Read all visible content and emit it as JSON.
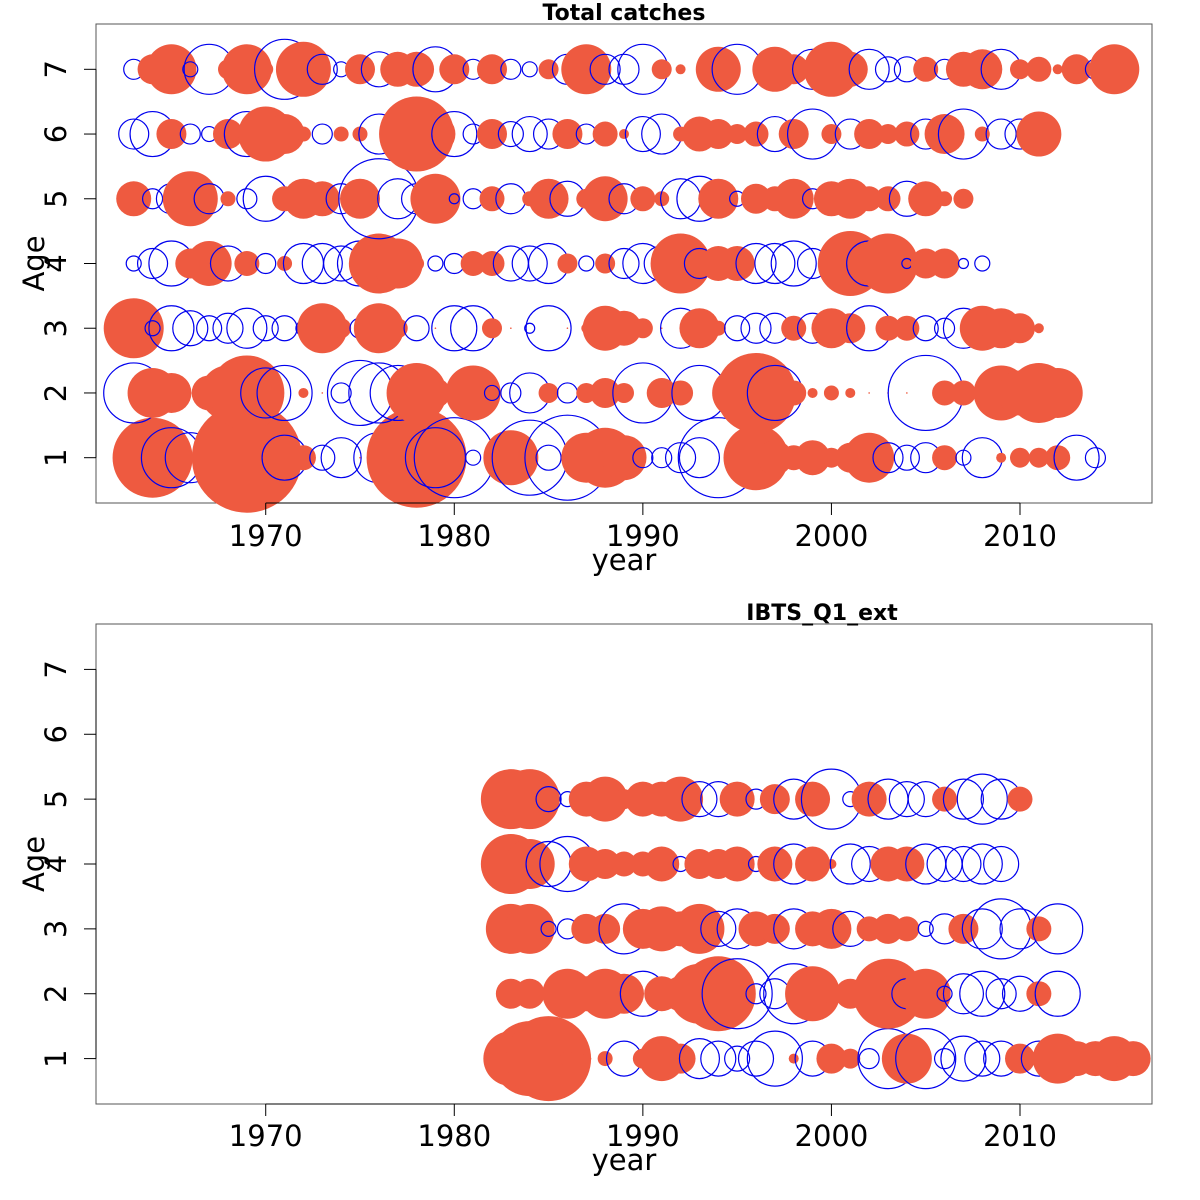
{
  "chart_data": [
    {
      "type": "scatter",
      "title": "Total catches",
      "xlabel": "year",
      "ylabel": "Age",
      "xlim": [
        1961,
        2017
      ],
      "ylim": [
        0.3,
        7.7
      ],
      "xticks": [
        "1970",
        "1980",
        "1990",
        "2000",
        "2010"
      ],
      "yticks": [
        "1",
        "2",
        "3",
        "4",
        "5",
        "6",
        "7"
      ],
      "grid": false,
      "legend": "none",
      "encoding": "bubble area ~ |residual|; filled = positive, open = negative",
      "colors": {
        "positive": "#ee5a40",
        "negative": "#0000ee"
      },
      "year_start": 1963,
      "series": [
        {
          "age": 1,
          "residuals": [
            0.3,
            1.6,
            -1.2,
            -1.0,
            0.4,
            0,
            2.2,
            0,
            -0.9,
            0.5,
            -0.5,
            -0.8,
            0,
            -1.0,
            -0.9,
            2.0,
            -1.2,
            -1.6,
            -0.3,
            0.3,
            1.1,
            -1.5,
            -0.5,
            -1.7,
            1.0,
            1.2,
            0.9,
            -0.4,
            -0.4,
            -0.6,
            -0.8,
            -1.6,
            0,
            1.3,
            0.7,
            0.5,
            0.7,
            0.4,
            0.6,
            1.0,
            -0.6,
            -0.5,
            -0.6,
            0.5,
            -0.3,
            -0.8,
            0.2,
            0.4,
            0.4,
            0.5,
            -0.9,
            -0.4
          ]
        },
        {
          "age": 2,
          "residuals": [
            -1.2,
            1.0,
            0.8,
            0,
            0.7,
            1.1,
            1.5,
            -1.0,
            -1.1,
            0.2,
            0,
            -0.4,
            -1.3,
            -1.2,
            -1.1,
            1.2,
            0.6,
            0,
            1.1,
            -0.3,
            -0.4,
            -0.8,
            0.4,
            -0.4,
            0.4,
            0.6,
            0.4,
            -1.2,
            0.6,
            0.5,
            -1.1,
            0,
            1.0,
            1.6,
            -1.1,
            0.5,
            0.2,
            0.3,
            0.2,
            0,
            0,
            0,
            -1.5,
            0.5,
            0.5,
            -0.2,
            1.1,
            0.9,
            1.2,
            1.0
          ]
        },
        {
          "age": 3,
          "residuals": [
            1.2,
            -0.3,
            -0.9,
            -0.7,
            -0.5,
            -0.6,
            -0.8,
            -0.5,
            -0.5,
            -0.3,
            1.0,
            0.4,
            -0.4,
            1.0,
            0.4,
            -0.5,
            0,
            -0.9,
            -0.9,
            0.4,
            0,
            -0.2,
            -0.9,
            0,
            0.2,
            0.9,
            0.7,
            0.4,
            0,
            -0.8,
            0.8,
            0.3,
            -0.5,
            -0.6,
            -0.6,
            0.5,
            -0.6,
            0.8,
            0.6,
            -0.9,
            0.5,
            0.5,
            -0.5,
            -0.4,
            -0.8,
            0.9,
            0.8,
            0.6,
            0.2
          ]
        },
        {
          "age": 4,
          "residuals": [
            -0.3,
            -0.6,
            -0.9,
            0.6,
            0.9,
            -0.7,
            0.5,
            -0.4,
            0.3,
            -0.8,
            -0.8,
            -0.7,
            -0.9,
            1.2,
            1.0,
            0.3,
            -0.3,
            -0.4,
            0.5,
            0.5,
            -0.7,
            -0.7,
            -0.8,
            0.4,
            -0.3,
            0.4,
            -0.6,
            -0.8,
            -0.7,
            1.2,
            -0.6,
            0.7,
            0.7,
            -0.8,
            -0.8,
            -0.9,
            -0.6,
            0.4,
            1.3,
            -0.9,
            1.2,
            -0.2,
            0.6,
            0.6,
            -0.2,
            -0.3
          ]
        },
        {
          "age": 5,
          "residuals": [
            0.7,
            -0.4,
            -0.6,
            1.1,
            -0.6,
            0.3,
            -0.4,
            -0.9,
            0.5,
            0.8,
            0.7,
            -0.6,
            0.8,
            -1.6,
            -0.8,
            -0.6,
            1.0,
            -0.2,
            -0.4,
            0.5,
            -0.6,
            0.3,
            0.8,
            -0.7,
            0.4,
            0.9,
            -0.6,
            0.5,
            0.3,
            -0.8,
            -0.9,
            0.8,
            -0.3,
            0.6,
            0.5,
            0.8,
            -0.4,
            0.7,
            0.8,
            0.5,
            0.5,
            -0.7,
            0.7,
            0.3,
            0.4
          ]
        },
        {
          "age": 6,
          "residuals": [
            -0.6,
            -0.9,
            0.6,
            -0.4,
            -0.3,
            0.6,
            -0.9,
            1.1,
            0.8,
            0.3,
            -0.4,
            0.3,
            0.3,
            -0.8,
            0.5,
            1.5,
            0.8,
            -0.9,
            -0.4,
            0.6,
            -0.5,
            -0.7,
            -0.6,
            0.6,
            -0.4,
            0.5,
            0.2,
            -0.7,
            -0.8,
            0.3,
            0.7,
            0.6,
            0.4,
            0.5,
            -0.7,
            0.6,
            -1.0,
            0.4,
            -0.6,
            0.6,
            0.4,
            0.5,
            -0.6,
            0.8,
            -1.0,
            0.3,
            -0.6,
            -0.6,
            0.9
          ]
        },
        {
          "age": 7,
          "residuals": [
            -0.4,
            0.6,
            1.0,
            -0.3,
            -1.0,
            0.4,
            1.0,
            0.3,
            -1.2,
            1.1,
            -0.6,
            -0.3,
            0.6,
            -0.7,
            0.7,
            0.7,
            -0.9,
            0.6,
            -0.4,
            0.6,
            -0.4,
            -0.3,
            0.4,
            -0.6,
            1.0,
            -0.6,
            -0.6,
            -1.0,
            0.4,
            0.2,
            0,
            0.9,
            -1.0,
            0,
            0.9,
            0.6,
            -0.8,
            1.1,
            0.7,
            -0.8,
            -0.5,
            -0.5,
            0.5,
            -0.4,
            0.7,
            0.8,
            -0.8,
            0.4,
            0.5,
            0.2,
            0.6,
            -0.4,
            1.0
          ]
        }
      ]
    },
    {
      "type": "scatter",
      "title": "IBTS_Q1_ext",
      "xlabel": "year",
      "ylabel": "Age",
      "xlim": [
        1961,
        2017
      ],
      "ylim": [
        0.3,
        7.7
      ],
      "xticks": [
        "1970",
        "1980",
        "1990",
        "2000",
        "2010"
      ],
      "yticks": [
        "1",
        "2",
        "3",
        "4",
        "5",
        "6",
        "7"
      ],
      "grid": false,
      "legend": "none",
      "encoding": "bubble area ~ |residual|; filled = positive, open = negative",
      "colors": {
        "positive": "#ee5a40",
        "negative": "#0000ee"
      },
      "year_start": 1983,
      "series": [
        {
          "age": 1,
          "residuals": [
            1.1,
            1.5,
            1.7,
            0.3,
            0.2,
            0.3,
            -0.7,
            0.4,
            0.9,
            0.6,
            -0.8,
            -0.7,
            -0.5,
            -0.7,
            -1.1,
            0.2,
            -0.7,
            0.6,
            0.4,
            -0.4,
            -1.2,
            1.0,
            -1.2,
            -0.4,
            -0.9,
            -0.7,
            -0.7,
            0.6,
            -0.7,
            1.0,
            0.7,
            0.7,
            0.9,
            0.7
          ]
        },
        {
          "age": 2,
          "residuals": [
            0.6,
            0.6,
            0,
            1.0,
            0.7,
            1.0,
            0.8,
            -0.9,
            0.7,
            0.7,
            1.2,
            1.5,
            -1.4,
            -0.4,
            -0.6,
            -1.2,
            1.1,
            0.4,
            0.6,
            -0.5,
            1.4,
            -0.6,
            1.0,
            -0.3,
            -0.8,
            -0.9,
            -0.6,
            -0.7,
            0.5,
            -0.9
          ]
        },
        {
          "age": 3,
          "residuals": [
            1.0,
            1.0,
            -0.3,
            -0.4,
            0.6,
            0.6,
            -1.0,
            0.8,
            0.9,
            0.7,
            1.0,
            -0.7,
            -0.8,
            0.7,
            0.6,
            -0.8,
            0.7,
            0.8,
            -0.7,
            0.5,
            0.6,
            0.5,
            -0.3,
            -0.6,
            0.6,
            -0.8,
            -1.2,
            -0.8,
            0.5,
            -1.0
          ]
        },
        {
          "age": 4,
          "residuals": [
            1.2,
            1.0,
            -0.9,
            -1.1,
            0.7,
            0.6,
            0.5,
            0.5,
            0.7,
            -0.3,
            0.6,
            0.6,
            0.7,
            -0.3,
            0.7,
            -0.8,
            0.7,
            0.2,
            -0.8,
            -0.7,
            0.7,
            0.7,
            -0.8,
            -0.7,
            -0.7,
            -0.8,
            -0.7
          ]
        },
        {
          "age": 5,
          "residuals": [
            1.2,
            1.2,
            -0.5,
            -0.3,
            0.7,
            0.9,
            0.4,
            0.7,
            0.7,
            0.9,
            -0.7,
            -0.7,
            0.7,
            -0.4,
            0.6,
            -0.8,
            0.7,
            -1.2,
            -0.3,
            0.7,
            -0.8,
            -0.7,
            -0.7,
            0.5,
            -0.8,
            -1.0,
            -0.8,
            0.5
          ]
        }
      ]
    }
  ]
}
